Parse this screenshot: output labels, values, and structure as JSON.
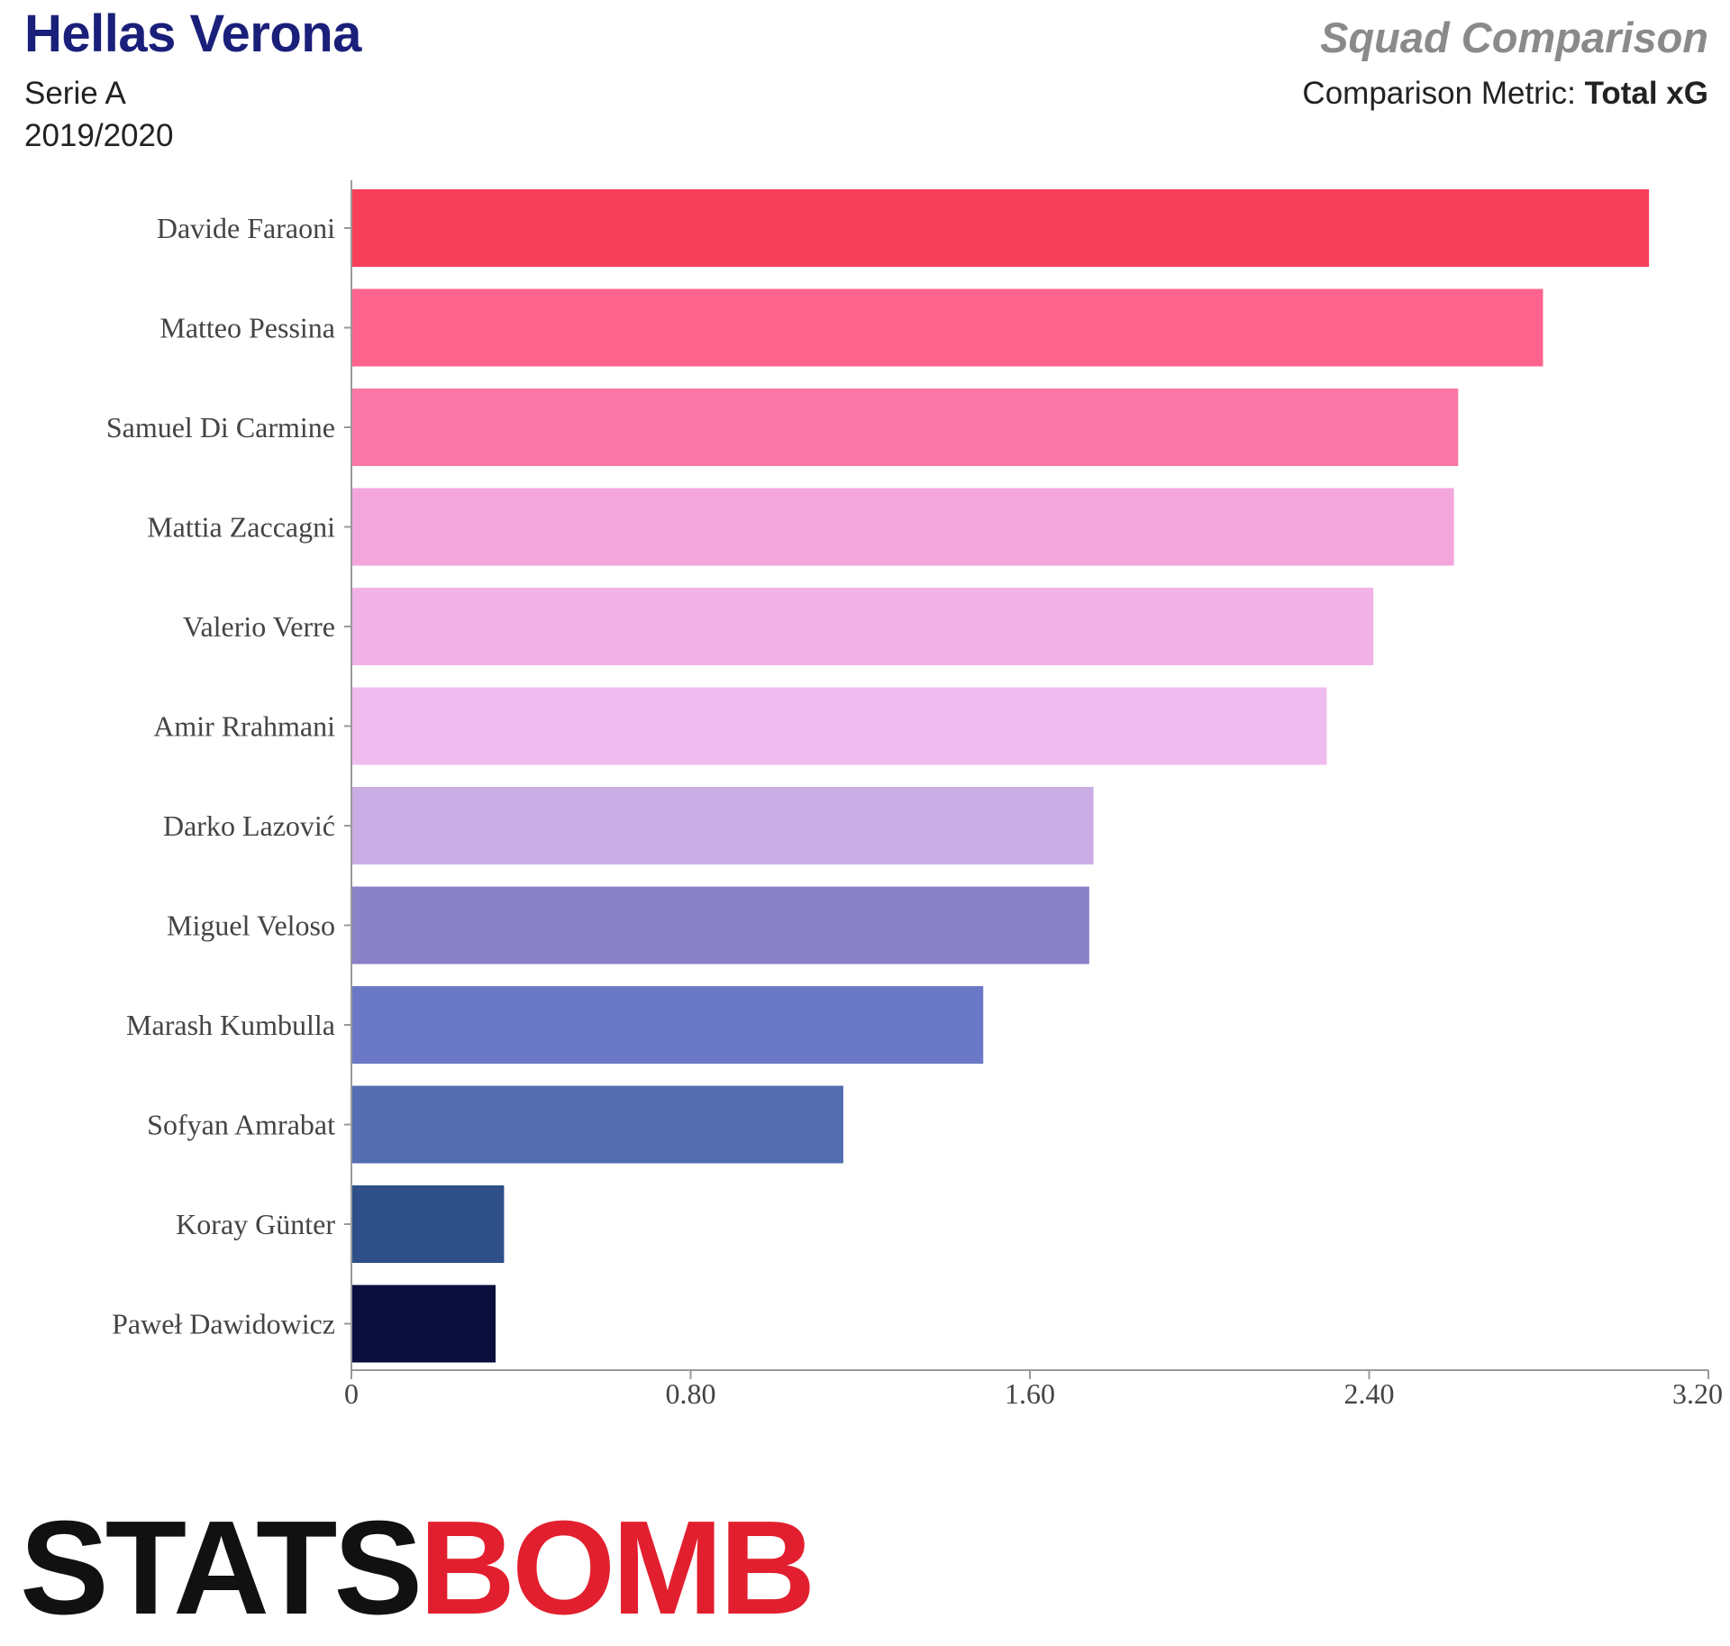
{
  "header": {
    "team": "Hellas Verona",
    "competition": "Serie A",
    "season": "2019/2020",
    "comparison_title": "Squad Comparison",
    "metric_prefix": "Comparison Metric:",
    "metric_name": "Total xG"
  },
  "logo": {
    "text_dark": "STATS",
    "text_red": "BOMB"
  },
  "chart_data": {
    "type": "bar",
    "orientation": "horizontal",
    "categories": [
      "Davide Faraoni",
      "Matteo Pessina",
      "Samuel Di Carmine",
      "Mattia Zaccagni",
      "Valerio Verre",
      "Amir Rrahmani",
      "Darko Lazović",
      "Miguel Veloso",
      "Marash Kumbulla",
      "Sofyan Amrabat",
      "Koray Günter",
      "Paweł Dawidowicz"
    ],
    "values": [
      3.06,
      2.81,
      2.61,
      2.6,
      2.41,
      2.3,
      1.75,
      1.74,
      1.49,
      1.16,
      0.36,
      0.34
    ],
    "colors": [
      "#f73f5a",
      "#fe638d",
      "#fa78a8",
      "#f2a6dc",
      "#f1b2e7",
      "#f0bcef",
      "#caade4",
      "#8a82c6",
      "#6a78c5",
      "#546cb0",
      "#2e4f88",
      "#0a0f3e"
    ],
    "xlim": [
      0,
      3.2
    ],
    "xticks": [
      "0",
      "0.80",
      "1.60",
      "2.40",
      "3.20"
    ],
    "xtick_values": [
      0,
      0.8,
      1.6,
      2.4,
      3.2
    ],
    "grid": false
  }
}
